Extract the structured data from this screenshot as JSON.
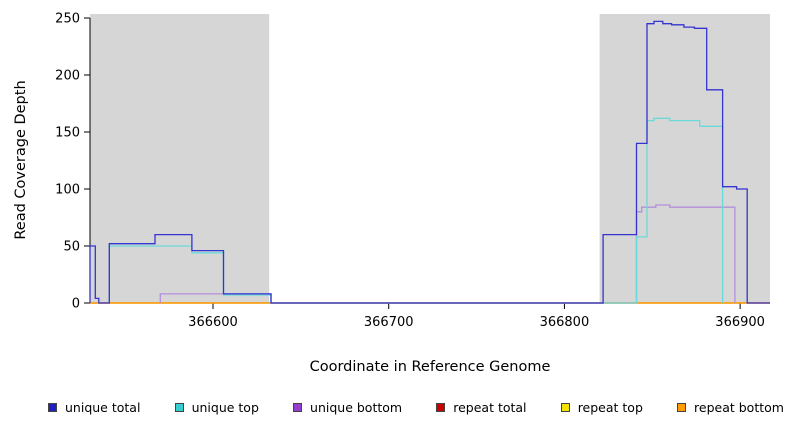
{
  "figure": {
    "background": "#ffffff"
  },
  "chart_data": {
    "type": "line",
    "title": "",
    "xlabel": "Coordinate in Reference Genome",
    "ylabel": "Read Coverage Depth",
    "xlim": [
      366530,
      366917
    ],
    "ylim": [
      0,
      250
    ],
    "x_ticks": [
      366600,
      366700,
      366800,
      366900
    ],
    "y_ticks": [
      0,
      50,
      100,
      150,
      200,
      250
    ],
    "grid": false,
    "legend_position": "bottom",
    "shade_color": "#d6d6d6",
    "shaded_regions": [
      {
        "from": 366530,
        "to": 366632
      },
      {
        "from": 366820,
        "to": 366917
      }
    ],
    "legend": [
      {
        "label": "unique total",
        "color": "#2020c0"
      },
      {
        "label": "unique top",
        "color": "#35cfcf"
      },
      {
        "label": "unique bottom",
        "color": "#9440cf"
      },
      {
        "label": "repeat total",
        "color": "#cc0000"
      },
      {
        "label": "repeat top",
        "color": "#f2e400"
      },
      {
        "label": "repeat bottom",
        "color": "#ff9d00"
      }
    ],
    "series": [
      {
        "name": "repeat total",
        "line_color": "#cc0000",
        "points": [
          [
            366530,
            0
          ],
          [
            366917,
            0
          ]
        ]
      },
      {
        "name": "repeat top",
        "line_color": "#f2e400",
        "points": [
          [
            366530,
            0
          ],
          [
            366917,
            0
          ]
        ]
      },
      {
        "name": "repeat bottom",
        "line_color": "#ff9d00",
        "points": [
          [
            366530,
            0
          ],
          [
            366917,
            0
          ]
        ]
      },
      {
        "name": "unique bottom",
        "line_color": "#b48fdc",
        "points": [
          [
            366570,
            0
          ],
          [
            366570,
            8
          ],
          [
            366633,
            8
          ],
          [
            366633,
            0
          ],
          [
            366841,
            0
          ],
          [
            366841,
            80
          ],
          [
            366844,
            80
          ],
          [
            366844,
            84
          ],
          [
            366852,
            84
          ],
          [
            366852,
            86
          ],
          [
            366860,
            86
          ],
          [
            366860,
            84
          ],
          [
            366897,
            84
          ],
          [
            366897,
            0
          ]
        ]
      },
      {
        "name": "unique top",
        "line_color": "#6cd9d9",
        "points": [
          [
            366541,
            0
          ],
          [
            366541,
            50
          ],
          [
            366588,
            50
          ],
          [
            366588,
            44
          ],
          [
            366606,
            44
          ],
          [
            366606,
            7
          ],
          [
            366633,
            7
          ],
          [
            366633,
            0
          ],
          [
            366841,
            0
          ],
          [
            366841,
            58
          ],
          [
            366847,
            58
          ],
          [
            366847,
            160
          ],
          [
            366851,
            160
          ],
          [
            366851,
            162
          ],
          [
            366860,
            162
          ],
          [
            366860,
            160
          ],
          [
            366877,
            160
          ],
          [
            366877,
            155
          ],
          [
            366890,
            155
          ],
          [
            366890,
            0
          ]
        ]
      },
      {
        "name": "unique total",
        "line_color": "#3434d0",
        "points": [
          [
            366530,
            0
          ],
          [
            366530,
            50
          ],
          [
            366533,
            50
          ],
          [
            366533,
            4
          ],
          [
            366535,
            4
          ],
          [
            366535,
            0
          ],
          [
            366541,
            0
          ],
          [
            366541,
            52
          ],
          [
            366567,
            52
          ],
          [
            366567,
            60
          ],
          [
            366588,
            60
          ],
          [
            366588,
            46
          ],
          [
            366606,
            46
          ],
          [
            366606,
            8
          ],
          [
            366633,
            8
          ],
          [
            366633,
            0
          ],
          [
            366822,
            0
          ],
          [
            366822,
            60
          ],
          [
            366841,
            60
          ],
          [
            366841,
            140
          ],
          [
            366847,
            140
          ],
          [
            366847,
            245
          ],
          [
            366851,
            245
          ],
          [
            366851,
            247
          ],
          [
            366856,
            247
          ],
          [
            366856,
            245
          ],
          [
            366861,
            245
          ],
          [
            366861,
            244
          ],
          [
            366868,
            244
          ],
          [
            366868,
            242
          ],
          [
            366874,
            242
          ],
          [
            366874,
            241
          ],
          [
            366881,
            241
          ],
          [
            366881,
            187
          ],
          [
            366890,
            187
          ],
          [
            366890,
            102
          ],
          [
            366898,
            102
          ],
          [
            366898,
            100
          ],
          [
            366904,
            100
          ],
          [
            366904,
            0
          ],
          [
            366917,
            0
          ]
        ]
      }
    ]
  }
}
